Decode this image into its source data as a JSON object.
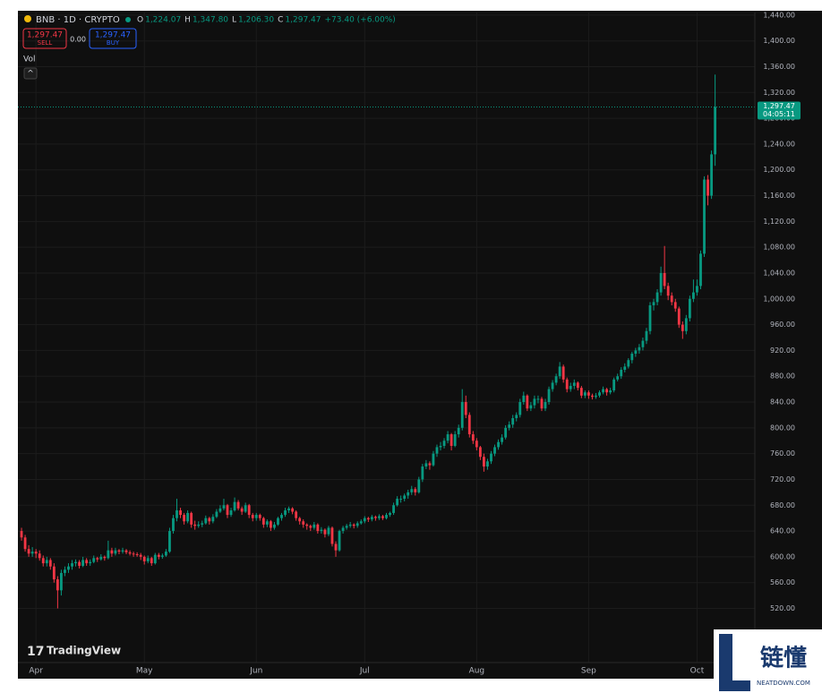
{
  "chart_data": {
    "type": "candlestick",
    "title": "BNB · 1D · CRYPTO",
    "ohlc_labels": [
      "O",
      "H",
      "L",
      "C"
    ],
    "ohlc_values": [
      "1,224.07",
      "1,347.80",
      "1,206.30",
      "1,297.47"
    ],
    "change": "+73.40 (+6.00%)",
    "sell": {
      "price": "1,297.47",
      "label": "SELL"
    },
    "spread": "0.00",
    "buy": {
      "price": "1,297.47",
      "label": "BUY"
    },
    "volume_label": "Vol",
    "brand": "TradingView",
    "last_price": {
      "value": 1297.47,
      "label": "1,297.47"
    },
    "countdown": "04:05:11",
    "colors": {
      "up": "#089981",
      "down": "#f23645"
    },
    "grid": true,
    "ylim": [
      436,
      1444
    ],
    "yticks": [
      {
        "value": 520,
        "label": "520.00"
      },
      {
        "value": 560,
        "label": "560.00"
      },
      {
        "value": 600,
        "label": "600.00"
      },
      {
        "value": 640,
        "label": "640.00"
      },
      {
        "value": 680,
        "label": "680.00"
      },
      {
        "value": 720,
        "label": "720.00"
      },
      {
        "value": 760,
        "label": "760.00"
      },
      {
        "value": 800,
        "label": "800.00"
      },
      {
        "value": 840,
        "label": "840.00"
      },
      {
        "value": 880,
        "label": "880.00"
      },
      {
        "value": 920,
        "label": "920.00"
      },
      {
        "value": 960,
        "label": "960.00"
      },
      {
        "value": 1000,
        "label": "1,000.00"
      },
      {
        "value": 1040,
        "label": "1,040.00"
      },
      {
        "value": 1080,
        "label": "1,080.00"
      },
      {
        "value": 1120,
        "label": "1,120.00"
      },
      {
        "value": 1160,
        "label": "1,160.00"
      },
      {
        "value": 1200,
        "label": "1,200.00"
      },
      {
        "value": 1240,
        "label": "1,240.00"
      },
      {
        "value": 1280,
        "label": "1,280.00"
      },
      {
        "value": 1320,
        "label": "1,320.00"
      },
      {
        "value": 1360,
        "label": "1,360.00"
      },
      {
        "value": 1400,
        "label": "1,400.00"
      },
      {
        "value": 1440,
        "label": "1,440.00"
      }
    ],
    "xlim": [
      -1,
      203
    ],
    "xticks": [
      {
        "value": 4,
        "label": "Apr"
      },
      {
        "value": 34,
        "label": "May"
      },
      {
        "value": 65,
        "label": "Jun"
      },
      {
        "value": 95,
        "label": "Jul"
      },
      {
        "value": 126,
        "label": "Aug"
      },
      {
        "value": 157,
        "label": "Sep"
      },
      {
        "value": 187,
        "label": "Oct"
      }
    ],
    "ohlc": [
      [
        640,
        645,
        625,
        630
      ],
      [
        630,
        634,
        608,
        612
      ],
      [
        612,
        618,
        600,
        605
      ],
      [
        605,
        615,
        600,
        608
      ],
      [
        608,
        612,
        598,
        605
      ],
      [
        605,
        610,
        594,
        598
      ],
      [
        598,
        602,
        585,
        590
      ],
      [
        590,
        600,
        585,
        595
      ],
      [
        595,
        598,
        580,
        585
      ],
      [
        585,
        590,
        560,
        565
      ],
      [
        565,
        570,
        520,
        548
      ],
      [
        548,
        580,
        540,
        575
      ],
      [
        575,
        585,
        570,
        580
      ],
      [
        580,
        590,
        575,
        585
      ],
      [
        585,
        595,
        580,
        590
      ],
      [
        590,
        596,
        585,
        592
      ],
      [
        592,
        595,
        582,
        586
      ],
      [
        586,
        600,
        584,
        595
      ],
      [
        595,
        598,
        586,
        590
      ],
      [
        590,
        596,
        586,
        592
      ],
      [
        592,
        602,
        590,
        598
      ],
      [
        598,
        600,
        592,
        596
      ],
      [
        596,
        604,
        594,
        600
      ],
      [
        600,
        602,
        594,
        598
      ],
      [
        598,
        625,
        596,
        610
      ],
      [
        610,
        614,
        600,
        605
      ],
      [
        605,
        614,
        602,
        610
      ],
      [
        610,
        612,
        604,
        608
      ],
      [
        608,
        614,
        605,
        610
      ],
      [
        610,
        612,
        604,
        607
      ],
      [
        607,
        610,
        602,
        605
      ],
      [
        605,
        608,
        600,
        604
      ],
      [
        604,
        607,
        600,
        603
      ],
      [
        603,
        606,
        595,
        600
      ],
      [
        600,
        602,
        588,
        593
      ],
      [
        593,
        602,
        590,
        598
      ],
      [
        598,
        600,
        586,
        590
      ],
      [
        590,
        606,
        588,
        603
      ],
      [
        603,
        606,
        596,
        600
      ],
      [
        600,
        605,
        597,
        602
      ],
      [
        602,
        612,
        600,
        608
      ],
      [
        608,
        645,
        606,
        640
      ],
      [
        640,
        665,
        636,
        660
      ],
      [
        660,
        690,
        655,
        672
      ],
      [
        672,
        676,
        660,
        665
      ],
      [
        665,
        668,
        650,
        655
      ],
      [
        655,
        672,
        652,
        668
      ],
      [
        668,
        670,
        645,
        650
      ],
      [
        650,
        656,
        642,
        648
      ],
      [
        648,
        655,
        645,
        650
      ],
      [
        650,
        656,
        646,
        652
      ],
      [
        652,
        664,
        650,
        660
      ],
      [
        660,
        662,
        650,
        655
      ],
      [
        655,
        666,
        652,
        662
      ],
      [
        662,
        674,
        660,
        670
      ],
      [
        670,
        680,
        668,
        675
      ],
      [
        675,
        690,
        672,
        680
      ],
      [
        680,
        682,
        660,
        665
      ],
      [
        665,
        676,
        662,
        672
      ],
      [
        672,
        692,
        670,
        685
      ],
      [
        685,
        688,
        672,
        675
      ],
      [
        675,
        678,
        665,
        670
      ],
      [
        670,
        684,
        668,
        680
      ],
      [
        680,
        682,
        660,
        665
      ],
      [
        665,
        668,
        655,
        660
      ],
      [
        660,
        668,
        656,
        665
      ],
      [
        665,
        667,
        656,
        660
      ],
      [
        660,
        662,
        645,
        650
      ],
      [
        650,
        658,
        646,
        655
      ],
      [
        655,
        657,
        640,
        645
      ],
      [
        645,
        654,
        642,
        650
      ],
      [
        650,
        662,
        648,
        660
      ],
      [
        660,
        668,
        656,
        665
      ],
      [
        665,
        676,
        662,
        672
      ],
      [
        672,
        678,
        668,
        675
      ],
      [
        675,
        677,
        666,
        670
      ],
      [
        670,
        672,
        656,
        660
      ],
      [
        660,
        662,
        650,
        655
      ],
      [
        655,
        658,
        645,
        650
      ],
      [
        650,
        652,
        642,
        648
      ],
      [
        648,
        650,
        640,
        645
      ],
      [
        645,
        654,
        642,
        650
      ],
      [
        650,
        652,
        636,
        640
      ],
      [
        640,
        646,
        636,
        642
      ],
      [
        642,
        644,
        630,
        635
      ],
      [
        635,
        648,
        632,
        645
      ],
      [
        645,
        647,
        616,
        620
      ],
      [
        620,
        624,
        600,
        610
      ],
      [
        610,
        642,
        608,
        640
      ],
      [
        640,
        648,
        636,
        645
      ],
      [
        645,
        651,
        642,
        648
      ],
      [
        648,
        654,
        645,
        650
      ],
      [
        650,
        652,
        644,
        648
      ],
      [
        648,
        655,
        645,
        652
      ],
      [
        652,
        658,
        650,
        655
      ],
      [
        655,
        663,
        652,
        660
      ],
      [
        660,
        662,
        654,
        658
      ],
      [
        658,
        665,
        655,
        662
      ],
      [
        662,
        664,
        656,
        660
      ],
      [
        660,
        666,
        657,
        663
      ],
      [
        663,
        665,
        657,
        660
      ],
      [
        660,
        668,
        658,
        665
      ],
      [
        665,
        670,
        662,
        668
      ],
      [
        668,
        684,
        665,
        680
      ],
      [
        680,
        694,
        678,
        690
      ],
      [
        690,
        695,
        684,
        690
      ],
      [
        690,
        698,
        686,
        695
      ],
      [
        695,
        704,
        690,
        700
      ],
      [
        700,
        710,
        696,
        705
      ],
      [
        705,
        708,
        695,
        700
      ],
      [
        700,
        724,
        698,
        720
      ],
      [
        720,
        744,
        716,
        740
      ],
      [
        740,
        750,
        736,
        745
      ],
      [
        745,
        748,
        735,
        742
      ],
      [
        742,
        764,
        740,
        760
      ],
      [
        760,
        774,
        755,
        770
      ],
      [
        770,
        778,
        765,
        772
      ],
      [
        772,
        784,
        768,
        780
      ],
      [
        780,
        795,
        776,
        790
      ],
      [
        790,
        792,
        765,
        772
      ],
      [
        772,
        795,
        770,
        790
      ],
      [
        790,
        805,
        785,
        800
      ],
      [
        800,
        860,
        796,
        840
      ],
      [
        840,
        850,
        815,
        820
      ],
      [
        820,
        824,
        785,
        790
      ],
      [
        790,
        795,
        775,
        780
      ],
      [
        780,
        784,
        765,
        770
      ],
      [
        770,
        772,
        750,
        755
      ],
      [
        755,
        760,
        732,
        740
      ],
      [
        740,
        752,
        735,
        748
      ],
      [
        748,
        764,
        744,
        760
      ],
      [
        760,
        774,
        756,
        770
      ],
      [
        770,
        782,
        766,
        778
      ],
      [
        778,
        790,
        774,
        785
      ],
      [
        785,
        804,
        782,
        800
      ],
      [
        800,
        810,
        796,
        805
      ],
      [
        805,
        820,
        800,
        815
      ],
      [
        815,
        824,
        810,
        820
      ],
      [
        820,
        845,
        816,
        840
      ],
      [
        840,
        856,
        836,
        850
      ],
      [
        850,
        852,
        826,
        830
      ],
      [
        830,
        840,
        826,
        835
      ],
      [
        835,
        850,
        830,
        845
      ],
      [
        845,
        850,
        838,
        845
      ],
      [
        845,
        848,
        826,
        830
      ],
      [
        830,
        845,
        826,
        840
      ],
      [
        840,
        864,
        836,
        860
      ],
      [
        860,
        874,
        856,
        870
      ],
      [
        870,
        884,
        866,
        880
      ],
      [
        880,
        902,
        876,
        895
      ],
      [
        895,
        898,
        870,
        875
      ],
      [
        875,
        878,
        855,
        860
      ],
      [
        860,
        870,
        856,
        865
      ],
      [
        865,
        875,
        860,
        870
      ],
      [
        870,
        872,
        858,
        862
      ],
      [
        862,
        865,
        846,
        850
      ],
      [
        850,
        858,
        846,
        855
      ],
      [
        855,
        858,
        845,
        850
      ],
      [
        850,
        853,
        844,
        848
      ],
      [
        848,
        854,
        845,
        850
      ],
      [
        850,
        858,
        847,
        855
      ],
      [
        855,
        864,
        852,
        860
      ],
      [
        860,
        862,
        850,
        855
      ],
      [
        855,
        862,
        852,
        858
      ],
      [
        858,
        878,
        855,
        875
      ],
      [
        875,
        884,
        872,
        880
      ],
      [
        880,
        894,
        876,
        890
      ],
      [
        890,
        900,
        886,
        895
      ],
      [
        895,
        908,
        892,
        905
      ],
      [
        905,
        918,
        900,
        915
      ],
      [
        915,
        924,
        910,
        920
      ],
      [
        920,
        930,
        915,
        925
      ],
      [
        925,
        940,
        920,
        935
      ],
      [
        935,
        955,
        930,
        950
      ],
      [
        950,
        995,
        945,
        990
      ],
      [
        990,
        1000,
        982,
        995
      ],
      [
        995,
        1015,
        990,
        1010
      ],
      [
        1010,
        1050,
        1005,
        1040
      ],
      [
        1040,
        1082,
        1015,
        1020
      ],
      [
        1020,
        1025,
        998,
        1005
      ],
      [
        1005,
        1010,
        990,
        995
      ],
      [
        995,
        1000,
        980,
        985
      ],
      [
        985,
        988,
        955,
        960
      ],
      [
        960,
        965,
        938,
        950
      ],
      [
        950,
        975,
        945,
        970
      ],
      [
        970,
        1005,
        965,
        1000
      ],
      [
        1000,
        1030,
        995,
        1010
      ],
      [
        1010,
        1030,
        1005,
        1020
      ],
      [
        1020,
        1075,
        1015,
        1070
      ],
      [
        1070,
        1190,
        1065,
        1185
      ],
      [
        1185,
        1192,
        1145,
        1160
      ],
      [
        1160,
        1230,
        1155,
        1224.07
      ],
      [
        1224.07,
        1347.8,
        1206.3,
        1297.47
      ]
    ]
  },
  "watermark": {
    "title": "链懂",
    "subtitle": "NEATDOWN.COM"
  }
}
